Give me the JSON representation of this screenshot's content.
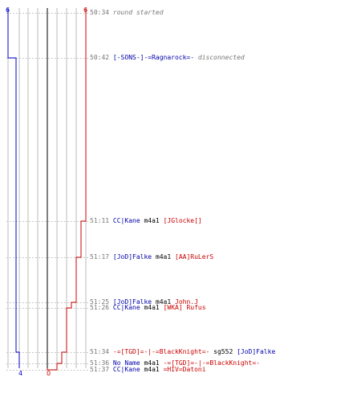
{
  "colors": {
    "team_a": "#0000cc",
    "team_b": "#cc0000",
    "grid": "#bbbbbb",
    "time": "#777777"
  },
  "start_counts": {
    "team_a": "6",
    "team_b": "6"
  },
  "end_counts": {
    "team_a": "4",
    "team_b": "0"
  },
  "events": [
    {
      "time": "50:34",
      "kind": "info",
      "text": "round started"
    },
    {
      "time": "50:42",
      "kind": "disconnect",
      "player": "[-SONS-]-=Ragnarock=-",
      "player_team": "blue",
      "text": "disconnected"
    },
    {
      "time": "51:11",
      "kind": "kill",
      "killer": "CC|Kane",
      "killer_team": "blue",
      "weapon": "m4a1",
      "victim": "[JGlocke[]",
      "victim_team": "red"
    },
    {
      "time": "51:17",
      "kind": "kill",
      "killer": "[JoD]Falke",
      "killer_team": "blue",
      "weapon": "m4a1",
      "victim": "[AA]RuLerS",
      "victim_team": "red"
    },
    {
      "time": "51:25",
      "kind": "kill",
      "killer": "[JoD]Falke",
      "killer_team": "blue",
      "weapon": "m4a1",
      "victim": "John.J",
      "victim_team": "red"
    },
    {
      "time": "51:26",
      "kind": "kill",
      "killer": "CC|Kane",
      "killer_team": "blue",
      "weapon": "m4a1",
      "victim": "[WKA] Rufus",
      "victim_team": "red"
    },
    {
      "time": "51:34",
      "kind": "kill",
      "killer": "-=[TGD]=-|-=BlackKnight=-",
      "killer_team": "red",
      "weapon": "sg552",
      "victim": "[JoD]Falke",
      "victim_team": "blue"
    },
    {
      "time": "51:36",
      "kind": "kill",
      "killer": "No Name",
      "killer_team": "blue",
      "weapon": "m4a1",
      "victim": "-=[TGD]=-|-=BlackKnight=-",
      "victim_team": "red"
    },
    {
      "time": "51:37",
      "kind": "kill",
      "killer": "CC|Kane",
      "killer_team": "blue",
      "weapon": "m4a1",
      "victim": "=HIV=Datoni",
      "victim_team": "red"
    }
  ],
  "team_a_counts": [
    6,
    5,
    5,
    5,
    5,
    5,
    4,
    4,
    4
  ],
  "team_b_counts": [
    6,
    6,
    5,
    4,
    3,
    2,
    2,
    1,
    0
  ]
}
